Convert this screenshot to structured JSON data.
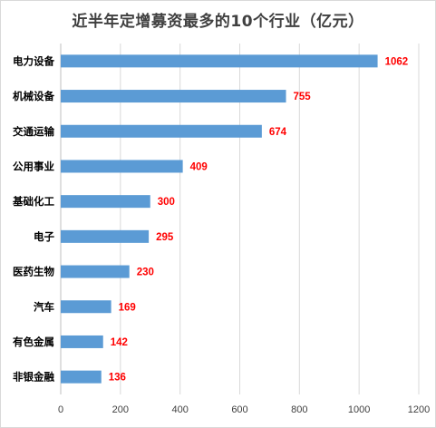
{
  "chart_data": {
    "type": "bar",
    "orientation": "horizontal",
    "title": "近半年定增募资最多的10个行业（亿元）",
    "categories": [
      "电力设备",
      "机械设备",
      "交通运输",
      "公用事业",
      "基础化工",
      "电子",
      "医药生物",
      "汽车",
      "有色金属",
      "非银金融"
    ],
    "values": [
      1062,
      755,
      674,
      409,
      300,
      295,
      230,
      169,
      142,
      136
    ],
    "xlim": [
      0,
      1200
    ],
    "x_ticks": [
      0,
      200,
      400,
      600,
      800,
      1000,
      1200
    ],
    "xlabel": "",
    "ylabel": "",
    "grid": true,
    "legend": "none",
    "bar_color": "#5b9bd5",
    "value_label_color": "#ff0000"
  }
}
